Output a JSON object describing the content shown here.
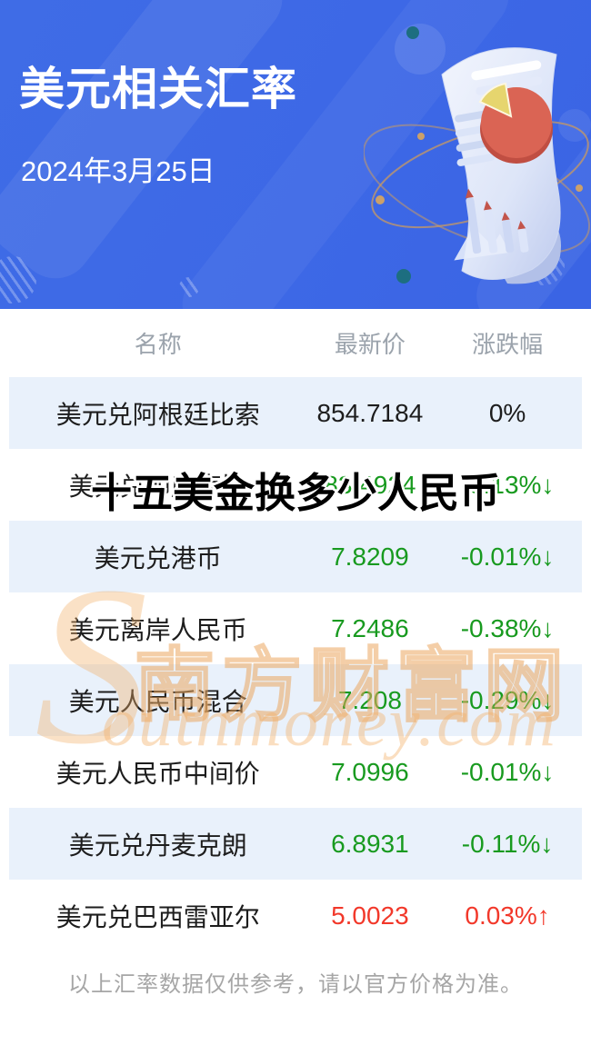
{
  "banner": {
    "title": "美元相关汇率",
    "date": "2024年3月25日",
    "bg_color": "#3d68e6"
  },
  "overlay_title": "十五美金换多少人民币",
  "watermark": {
    "swoosh": "S",
    "cn": "南方财富网",
    "en": "outhmoney.com",
    "color": "#f3b068"
  },
  "table": {
    "headers": [
      "名称",
      "最新价",
      "涨跌幅"
    ],
    "rows": [
      {
        "name": "美元兑阿根廷比索",
        "price": "854.7184",
        "change": "0%",
        "trend": "flat"
      },
      {
        "name": "美元兑印度卢比",
        "price": "83.4924",
        "change": "-0.13%↓",
        "trend": "down"
      },
      {
        "name": "美元兑港币",
        "price": "7.8209",
        "change": "-0.01%↓",
        "trend": "down"
      },
      {
        "name": "美元离岸人民币",
        "price": "7.2486",
        "change": "-0.38%↓",
        "trend": "down"
      },
      {
        "name": "美元人民币混合",
        "price": "7.208",
        "change": "-0.29%↓",
        "trend": "down"
      },
      {
        "name": "美元人民币中间价",
        "price": "7.0996",
        "change": "-0.01%↓",
        "trend": "down"
      },
      {
        "name": "美元兑丹麦克朗",
        "price": "6.8931",
        "change": "-0.11%↓",
        "trend": "down"
      },
      {
        "name": "美元兑巴西雷亚尔",
        "price": "5.0023",
        "change": "0.03%↑",
        "trend": "up"
      }
    ],
    "colors": {
      "down_green": "#189a1f",
      "up_red": "#f2382a",
      "flat_black": "#1d1d1d",
      "shaded_row": "#e9f1fb",
      "header_gray": "#9ba3ac"
    }
  },
  "footer": {
    "disclaimer": "以上汇率数据仅供参考，请以官方价格为准。"
  }
}
